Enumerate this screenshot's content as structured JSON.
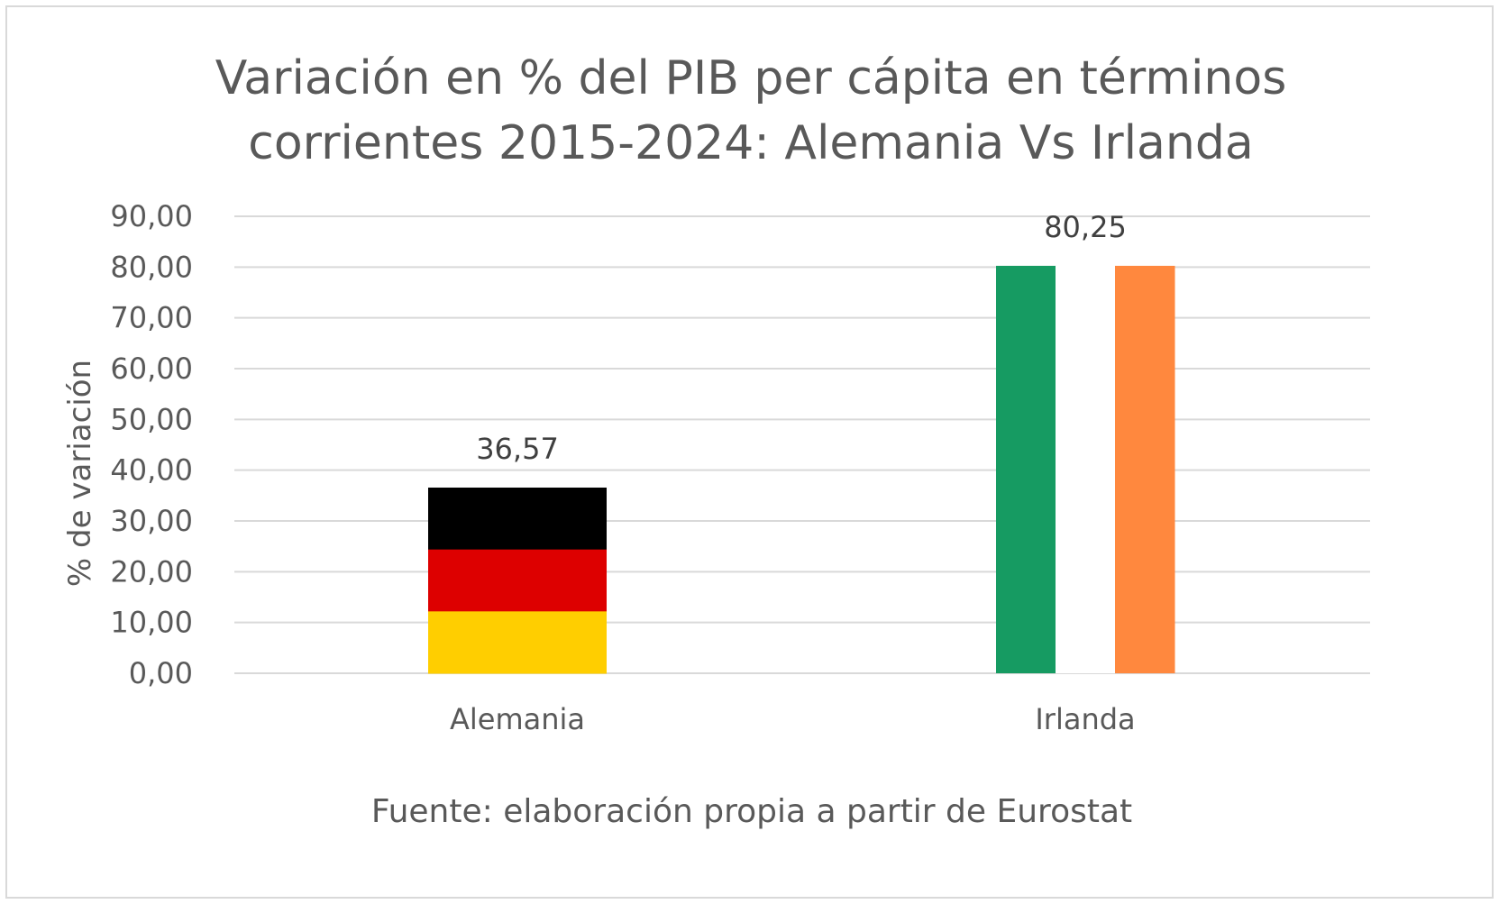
{
  "chart_data": {
    "type": "bar",
    "title_lines": [
      "Variación en % del PIB per cápita en términos",
      "corrientes 2015-2024: Alemania Vs Irlanda"
    ],
    "categories": [
      "Alemania",
      "Irlanda"
    ],
    "values": [
      36.57,
      80.25
    ],
    "data_labels": [
      "36,57",
      "80,25"
    ],
    "ylabel": "% de variación",
    "xlabel": "Fuente: elaboración propia a partir de Eurostat",
    "ylim": [
      0,
      90
    ],
    "y_ticks": [
      0,
      10,
      20,
      30,
      40,
      50,
      60,
      70,
      80,
      90
    ],
    "y_tick_labels": [
      "0,00",
      "10,00",
      "20,00",
      "30,00",
      "40,00",
      "50,00",
      "60,00",
      "70,00",
      "80,00",
      "90,00"
    ],
    "grid": true,
    "bar_styles": [
      {
        "category": "Alemania",
        "pattern": "horizontal-stripes",
        "colors": [
          "#000000",
          "#dd0000",
          "#ffce00"
        ]
      },
      {
        "category": "Irlanda",
        "pattern": "vertical-stripes",
        "colors": [
          "#169b62",
          "#ffffff",
          "#ff883e"
        ]
      }
    ],
    "gridline_color": "#d9d9d9",
    "text_color": "#595959"
  }
}
